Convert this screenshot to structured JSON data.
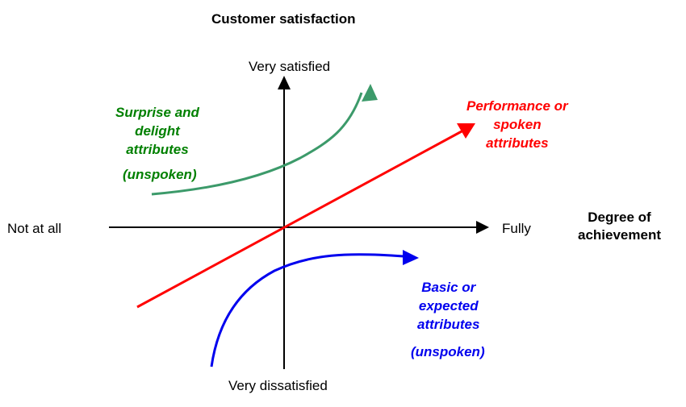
{
  "title": "Customer satisfaction",
  "axes": {
    "y_top": "Very satisfied",
    "y_bottom": "Very dissatisfied",
    "x_left": "Not at all",
    "x_right": "Fully",
    "x_name_line1": "Degree of",
    "x_name_line2": "achievement"
  },
  "categories": {
    "surprise": {
      "line1": "Surprise and",
      "line2": "delight",
      "line3": "attributes",
      "note": "(unspoken)",
      "color": "#3c9a6a"
    },
    "performance": {
      "line1": "Performance or",
      "line2": "spoken",
      "line3": "attributes",
      "color": "#ff0000"
    },
    "basic": {
      "line1": "Basic or",
      "line2": "expected",
      "line3": "attributes",
      "note": "(unspoken)",
      "color": "#0000ee"
    }
  }
}
